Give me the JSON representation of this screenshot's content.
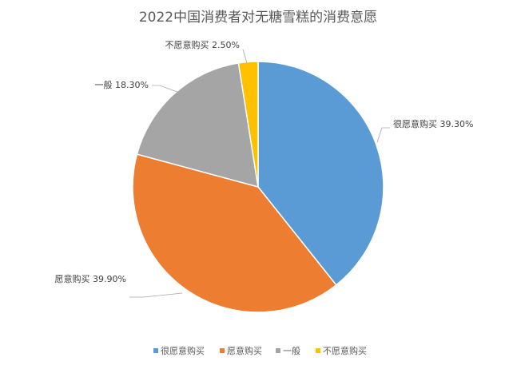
{
  "chart_data": {
    "type": "pie",
    "title": "2022中国消费者对无糖雪糕的消费意愿",
    "categories": [
      "很愿意购买",
      "愿意购买",
      "一般",
      "不愿意购买"
    ],
    "values": [
      39.3,
      39.9,
      18.3,
      2.5
    ],
    "data_labels": [
      "很愿意购买 39.30%",
      "愿意购买 39.90%",
      "一般 18.30%",
      "不愿意购买 2.50%"
    ],
    "colors": [
      "#5B9BD5",
      "#ED7D31",
      "#A5A5A5",
      "#FFC000"
    ],
    "legend_position": "bottom",
    "start_angle": "12 o'clock",
    "direction": "clockwise"
  }
}
